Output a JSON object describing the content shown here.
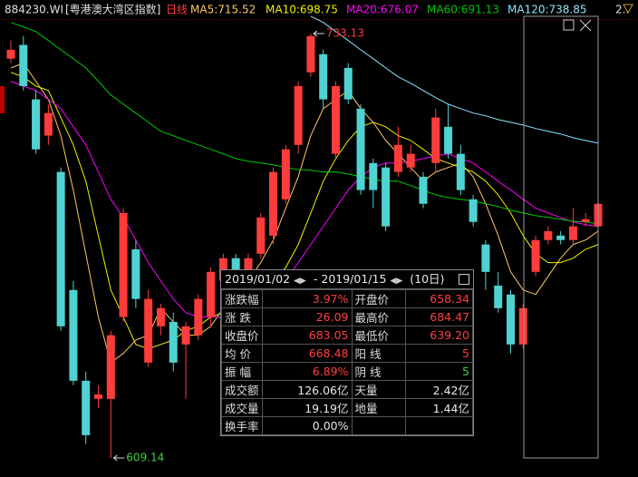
{
  "header": {
    "code": "884230.WI",
    "name": "[粤港澳大湾区指数]",
    "period": "日线",
    "more": "2.."
  },
  "chart_data": {
    "type": "candlestick",
    "up_color": "#ff3c3c",
    "down_color": "#4fd2d2",
    "open": [
      725.8,
      729.8,
      713.9,
      703.3,
      692.7,
      658.2,
      631.7,
      626.4,
      626.4,
      650.3,
      670.1,
      637.0,
      647.6,
      648.9,
      642.3,
      645.0,
      650.3,
      660.9,
      667.5,
      663.5,
      668.8,
      674.1,
      684.7,
      700.6,
      721.8,
      727.1,
      698.0,
      723.1,
      711.2,
      695.3,
      694.0,
      692.7,
      694.0,
      691.3,
      695.3,
      705.9,
      698.0,
      684.7,
      671.5,
      659.5,
      656.9,
      642.3,
      663.5,
      672.8,
      674.1,
      672.8,
      678.1,
      676.8
    ],
    "high": [
      731.1,
      732.4,
      716.5,
      712.5,
      694.0,
      660.9,
      634.4,
      630.4,
      646.3,
      682.1,
      672.8,
      658.2,
      654.2,
      651.6,
      648.9,
      656.9,
      664.8,
      668.8,
      668.8,
      668.8,
      680.7,
      694.0,
      700.6,
      719.2,
      733.13,
      728.4,
      719.2,
      724.5,
      712.5,
      696.6,
      695.3,
      705.9,
      700.6,
      692.7,
      711.2,
      712.5,
      700.6,
      686.0,
      672.8,
      663.5,
      658.2,
      654.2,
      674.1,
      676.8,
      675.4,
      682.1,
      680.7,
      684.7
    ],
    "low": [
      724.5,
      716.5,
      698.0,
      700.6,
      646.3,
      630.4,
      613.2,
      623.8,
      609.14,
      648.9,
      652.9,
      635.7,
      645.0,
      634.4,
      626.4,
      643.6,
      647.6,
      659.5,
      662.2,
      655.6,
      667.5,
      671.5,
      683.4,
      698.0,
      720.5,
      711.2,
      696.6,
      712.5,
      686.0,
      682.1,
      675.4,
      691.3,
      692.7,
      682.1,
      692.7,
      696.6,
      686.0,
      676.8,
      658.2,
      651.6,
      639.7,
      641.0,
      662.2,
      671.5,
      671.5,
      671.5,
      676.8,
      675.4
    ],
    "close": [
      728.4,
      717.8,
      699.3,
      709.9,
      647.6,
      631.7,
      615.8,
      627.7,
      645.0,
      680.7,
      655.6,
      655.6,
      652.9,
      637.0,
      647.6,
      655.6,
      663.5,
      667.5,
      663.5,
      667.5,
      679.4,
      692.7,
      699.3,
      717.8,
      732.4,
      713.9,
      717.8,
      713.9,
      687.4,
      687.4,
      676.8,
      700.6,
      698.0,
      683.4,
      708.6,
      698.0,
      687.4,
      678.1,
      663.5,
      652.9,
      642.3,
      652.9,
      672.8,
      675.4,
      672.8,
      676.8,
      678.9,
      683.4
    ],
    "series": [
      {
        "name": "MA5:715.52",
        "color": "#ffc864",
        "values": [
          723.1,
          724.5,
          719.2,
          713.9,
          703.3,
          687.4,
          668.8,
          650.3,
          637.0,
          639.7,
          643.6,
          645.0,
          652.9,
          648.9,
          645.0,
          645.0,
          647.6,
          652.9,
          655.6,
          660.9,
          666.2,
          672.8,
          682.1,
          691.3,
          703.3,
          711.2,
          713.9,
          716.5,
          711.2,
          707.2,
          701.9,
          698.0,
          694.0,
          690.0,
          692.7,
          694.0,
          695.3,
          691.3,
          683.4,
          674.1,
          663.5,
          658.2,
          656.9,
          662.2,
          667.5,
          671.5,
          672.8,
          675.4
        ]
      },
      {
        "name": "MA10:698.75",
        "color": "#f0f000",
        "values": [
          721.8,
          720.5,
          717.8,
          716.5,
          708.6,
          700.6,
          690.0,
          674.1,
          658.2,
          650.3,
          642.3,
          641.0,
          642.3,
          643.6,
          646.3,
          647.6,
          650.3,
          651.6,
          652.9,
          655.6,
          658.2,
          660.9,
          664.8,
          671.5,
          680.7,
          690.0,
          696.6,
          701.9,
          705.9,
          707.2,
          705.9,
          703.3,
          701.9,
          699.3,
          696.6,
          695.3,
          694.0,
          692.7,
          690.0,
          686.0,
          680.7,
          674.1,
          668.8,
          666.2,
          666.2,
          667.5,
          670.1,
          671.5
        ]
      },
      {
        "name": "MA20:676.07",
        "color": "#ff00ff",
        "values": [
          719.2,
          717.8,
          716.5,
          713.9,
          711.2,
          705.9,
          700.6,
          692.7,
          684.7,
          679.4,
          672.8,
          666.2,
          660.9,
          655.6,
          651.6,
          650.3,
          650.3,
          650.3,
          651.6,
          652.9,
          654.2,
          656.9,
          660.9,
          666.2,
          671.5,
          676.8,
          682.1,
          687.4,
          691.3,
          694.0,
          695.3,
          695.3,
          695.8,
          696.6,
          697.4,
          698.0,
          696.6,
          695.3,
          692.7,
          690.0,
          687.4,
          684.7,
          682.1,
          680.7,
          679.4,
          678.1,
          677.3,
          676.8
        ]
      },
      {
        "name": "MA60:691.13",
        "color": "#00c800",
        "values": [
          736.4,
          735.1,
          733.7,
          731.1,
          728.4,
          725.8,
          723.1,
          719.2,
          715.2,
          712.5,
          709.9,
          707.2,
          704.6,
          703.3,
          701.9,
          700.6,
          699.3,
          698.0,
          696.6,
          695.8,
          695.3,
          694.8,
          694.0,
          693.4,
          693.2,
          692.7,
          692.7,
          692.1,
          691.3,
          690.5,
          690.0,
          690.0,
          688.7,
          687.4,
          686.0,
          685.2,
          684.7,
          684.2,
          683.4,
          682.6,
          681.5,
          680.7,
          679.9,
          679.4,
          678.9,
          678.3,
          678.1,
          677.5
        ]
      },
      {
        "name": "MA120:738.85",
        "color": "#8ce6ff",
        "values": [
          null,
          null,
          null,
          null,
          null,
          null,
          null,
          null,
          null,
          null,
          null,
          null,
          null,
          null,
          null,
          null,
          null,
          null,
          null,
          null,
          null,
          null,
          null,
          null,
          738.2,
          736.4,
          733.7,
          731.1,
          728.4,
          725.8,
          723.1,
          720.5,
          718.6,
          716.5,
          714.4,
          712.5,
          711.2,
          709.9,
          709.1,
          708.0,
          707.2,
          706.4,
          705.4,
          704.6,
          703.8,
          702.7,
          701.9,
          701.1
        ]
      }
    ],
    "annotations": [
      733.13,
      609.14
    ]
  },
  "panel": {
    "start": "2019/01/02",
    "sep": "-",
    "end": "2019/01/15",
    "days": "(10日)",
    "rows": [
      [
        "涨跌幅",
        "3.97%",
        "开盘价",
        "658.34"
      ],
      [
        "涨 跌",
        "26.09",
        "最高价",
        "684.47"
      ],
      [
        "收盘价",
        "683.05",
        "最低价",
        "639.20"
      ],
      [
        "均 价",
        "668.48",
        "阳 线",
        "5"
      ],
      [
        "振 幅",
        "6.89%",
        "阴 线",
        "5"
      ],
      [
        "成交额",
        "126.06亿",
        "天量",
        "2.42亿"
      ],
      [
        "成交量",
        "19.19亿",
        "地量",
        "1.44亿"
      ],
      [
        "换手率",
        "0.00%"
      ]
    ]
  }
}
